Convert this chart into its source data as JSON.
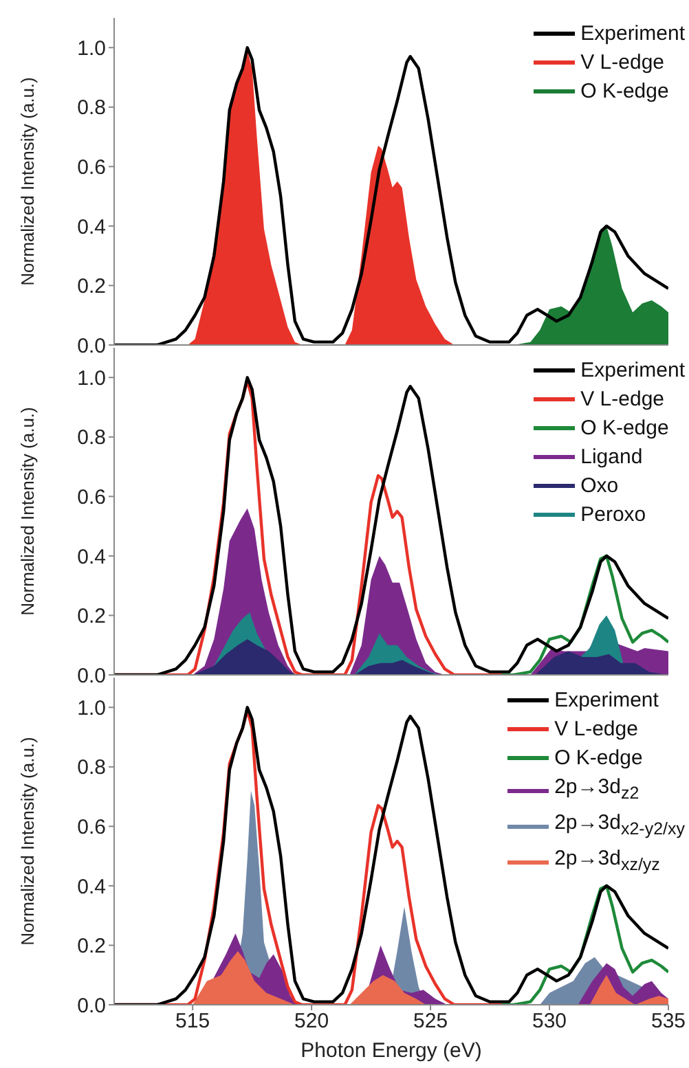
{
  "chart_data": [
    {
      "type": "line",
      "ylabel": "Normalized Intensity (a.u.)",
      "xlim": [
        511.7,
        535
      ],
      "xticks": [
        515,
        520,
        525,
        530,
        535
      ],
      "ylim": [
        0,
        1.1
      ],
      "yticks": [
        {
          "value": 0,
          "label": "0.0"
        },
        {
          "value": 0.2,
          "label": "0.2"
        },
        {
          "value": 0.4,
          "label": "0.4"
        },
        {
          "value": 0.6,
          "label": "0.6"
        },
        {
          "value": 0.8,
          "label": "0.8"
        },
        {
          "value": 1,
          "label": "1.0"
        }
      ],
      "tick_labels": "y",
      "legend": "top right",
      "grid": false,
      "series": [
        {
          "name": "Experiment",
          "color": "#000000",
          "type": "line",
          "x": [
            511.7,
            513.5,
            514.3,
            514.7,
            515.1,
            515.5,
            515.9,
            516.3,
            516.55,
            516.85,
            517.1,
            517.3,
            517.5,
            517.8,
            518.1,
            518.4,
            518.7,
            519.0,
            519.3,
            519.65,
            520.1,
            520.9,
            521.3,
            521.7,
            522.1,
            522.5,
            522.85,
            523.2,
            523.6,
            524.0,
            524.15,
            524.5,
            524.9,
            525.3,
            525.7,
            526.05,
            526.45,
            526.9,
            527.5,
            528.3,
            528.65,
            529.05,
            529.5,
            529.9,
            530.3,
            530.8,
            531.3,
            531.8,
            532.15,
            532.4,
            532.75,
            533.3,
            534.0,
            535.0
          ],
          "values": [
            0,
            0,
            0.02,
            0.05,
            0.1,
            0.16,
            0.3,
            0.55,
            0.79,
            0.88,
            0.93,
            1.0,
            0.96,
            0.79,
            0.73,
            0.65,
            0.5,
            0.27,
            0.08,
            0.02,
            0.01,
            0.01,
            0.04,
            0.12,
            0.24,
            0.42,
            0.59,
            0.7,
            0.82,
            0.95,
            0.97,
            0.93,
            0.76,
            0.56,
            0.36,
            0.21,
            0.1,
            0.03,
            0.01,
            0.01,
            0.04,
            0.1,
            0.12,
            0.1,
            0.08,
            0.1,
            0.16,
            0.28,
            0.38,
            0.4,
            0.38,
            0.3,
            0.24,
            0.19
          ]
        },
        {
          "name": "V L-edge",
          "color": "#e8332a",
          "type": "area",
          "x": [
            511.7,
            514.8,
            515.1,
            515.5,
            515.9,
            516.3,
            516.55,
            516.85,
            517.1,
            517.3,
            517.5,
            517.7,
            518.0,
            518.3,
            518.6,
            519.0,
            519.3,
            519.6,
            521.4,
            521.7,
            522.1,
            522.5,
            522.8,
            522.95,
            523.2,
            523.4,
            523.6,
            523.8,
            524.1,
            524.4,
            524.8,
            525.2,
            525.6,
            526.0,
            528.0
          ],
          "values": [
            0,
            0,
            0.02,
            0.15,
            0.33,
            0.58,
            0.81,
            0.88,
            0.93,
            0.99,
            0.93,
            0.7,
            0.39,
            0.27,
            0.18,
            0.06,
            0.01,
            0,
            0,
            0.05,
            0.3,
            0.58,
            0.67,
            0.66,
            0.59,
            0.53,
            0.55,
            0.53,
            0.36,
            0.22,
            0.13,
            0.07,
            0.02,
            0,
            0
          ]
        },
        {
          "name": "O K-edge",
          "color": "#1b7d36",
          "type": "area",
          "x": [
            528.0,
            528.5,
            529.2,
            529.6,
            530.0,
            530.5,
            530.9,
            531.3,
            531.8,
            532.15,
            532.4,
            532.65,
            533.05,
            533.5,
            533.9,
            534.3,
            534.7,
            535.0
          ],
          "values": [
            0,
            0,
            0.01,
            0.05,
            0.12,
            0.13,
            0.11,
            0.16,
            0.3,
            0.39,
            0.4,
            0.33,
            0.19,
            0.11,
            0.14,
            0.15,
            0.13,
            0.11
          ]
        }
      ]
    },
    {
      "type": "line",
      "ylabel": "Normalized Intensity (a.u.)",
      "xlim": [
        511.7,
        535
      ],
      "xticks": [
        515,
        520,
        525,
        530,
        535
      ],
      "ylim": [
        0,
        1.1
      ],
      "yticks": [
        {
          "value": 0,
          "label": "0.0"
        },
        {
          "value": 0.2,
          "label": "0.2"
        },
        {
          "value": 0.4,
          "label": "0.4"
        },
        {
          "value": 0.6,
          "label": "0.6"
        },
        {
          "value": 0.8,
          "label": "0.8"
        },
        {
          "value": 1,
          "label": "1.0"
        }
      ],
      "tick_labels": "y",
      "legend": "top right",
      "grid": false,
      "series": [
        {
          "name": "Experiment",
          "color": "#000000",
          "type": "line",
          "x": [
            511.7,
            513.5,
            514.3,
            514.7,
            515.1,
            515.5,
            515.9,
            516.3,
            516.55,
            516.85,
            517.1,
            517.3,
            517.5,
            517.8,
            518.1,
            518.4,
            518.7,
            519.0,
            519.3,
            519.65,
            520.1,
            520.9,
            521.3,
            521.7,
            522.1,
            522.5,
            522.85,
            523.2,
            523.6,
            524.0,
            524.15,
            524.5,
            524.9,
            525.3,
            525.7,
            526.05,
            526.45,
            526.9,
            527.5,
            528.3,
            528.65,
            529.05,
            529.5,
            529.9,
            530.3,
            530.8,
            531.3,
            531.8,
            532.15,
            532.4,
            532.75,
            533.3,
            534.0,
            535.0
          ],
          "values": [
            0,
            0,
            0.02,
            0.05,
            0.1,
            0.16,
            0.3,
            0.55,
            0.79,
            0.88,
            0.93,
            1.0,
            0.96,
            0.79,
            0.73,
            0.65,
            0.5,
            0.27,
            0.08,
            0.02,
            0.01,
            0.01,
            0.04,
            0.12,
            0.24,
            0.42,
            0.59,
            0.7,
            0.82,
            0.95,
            0.97,
            0.93,
            0.76,
            0.56,
            0.36,
            0.21,
            0.1,
            0.03,
            0.01,
            0.01,
            0.04,
            0.1,
            0.12,
            0.1,
            0.08,
            0.1,
            0.16,
            0.28,
            0.38,
            0.4,
            0.38,
            0.3,
            0.24,
            0.19
          ]
        },
        {
          "name": "V L-edge",
          "color": "#e8332a",
          "type": "line",
          "x": [
            511.7,
            514.8,
            515.1,
            515.5,
            515.9,
            516.3,
            516.55,
            516.85,
            517.1,
            517.3,
            517.5,
            517.7,
            518.0,
            518.3,
            518.6,
            519.0,
            519.3,
            519.6,
            521.4,
            521.7,
            522.1,
            522.5,
            522.8,
            522.95,
            523.2,
            523.4,
            523.6,
            523.8,
            524.1,
            524.4,
            524.8,
            525.2,
            525.6,
            526.0,
            528.0
          ],
          "values": [
            0,
            0,
            0.02,
            0.15,
            0.33,
            0.58,
            0.81,
            0.88,
            0.93,
            0.99,
            0.93,
            0.7,
            0.39,
            0.27,
            0.18,
            0.06,
            0.01,
            0,
            0,
            0.05,
            0.3,
            0.58,
            0.67,
            0.66,
            0.59,
            0.53,
            0.55,
            0.53,
            0.36,
            0.22,
            0.13,
            0.07,
            0.02,
            0,
            0
          ]
        },
        {
          "name": "O K-edge",
          "color": "#1e8a3a",
          "type": "line",
          "x": [
            528.0,
            528.5,
            529.2,
            529.6,
            530.0,
            530.5,
            530.9,
            531.3,
            531.8,
            532.15,
            532.4,
            532.65,
            533.05,
            533.5,
            533.9,
            534.3,
            534.7,
            535.0
          ],
          "values": [
            0,
            0,
            0.01,
            0.05,
            0.12,
            0.13,
            0.11,
            0.16,
            0.3,
            0.39,
            0.4,
            0.33,
            0.19,
            0.11,
            0.14,
            0.15,
            0.13,
            0.11
          ]
        },
        {
          "name": "Ligand",
          "color": "#7b2a8c",
          "type": "area",
          "x": [
            515.0,
            515.5,
            515.9,
            516.3,
            516.55,
            517.0,
            517.3,
            517.6,
            517.9,
            518.2,
            518.6,
            519.0,
            519.3,
            521.6,
            522.1,
            522.5,
            522.85,
            523.1,
            523.4,
            523.7,
            524.0,
            524.4,
            524.8,
            525.2,
            525.6,
            529.2,
            529.6,
            530.1,
            530.6,
            531.1,
            531.6,
            532.0,
            532.4,
            532.8,
            533.3,
            533.7,
            534.0,
            535.0
          ],
          "values": [
            0,
            0.03,
            0.12,
            0.29,
            0.45,
            0.52,
            0.56,
            0.49,
            0.32,
            0.21,
            0.1,
            0.03,
            0,
            0,
            0.1,
            0.32,
            0.4,
            0.37,
            0.31,
            0.31,
            0.23,
            0.12,
            0.04,
            0.01,
            0,
            0,
            0.04,
            0.09,
            0.08,
            null,
            0.08,
            0.13,
            null,
            null,
            null,
            0.08,
            0.09,
            0.08
          ]
        },
        {
          "name": "Oxo",
          "color": "#2b2a6e",
          "type": "area",
          "x": [
            515.0,
            515.9,
            516.4,
            516.9,
            517.3,
            517.7,
            518.2,
            518.6,
            519.1,
            519.4,
            521.8,
            522.4,
            522.9,
            523.4,
            523.8,
            524.3,
            524.9,
            525.3,
            529.4,
            530.2,
            530.8,
            531.4,
            532.0,
            532.5,
            533.0,
            533.6,
            534.2,
            535.0
          ],
          "values": [
            0,
            0.03,
            0.07,
            0.1,
            0.12,
            0.1,
            0.08,
            0.05,
            0.01,
            0,
            0,
            0.03,
            0.04,
            0.04,
            0.05,
            0.03,
            0.01,
            0,
            0,
            0.06,
            0.08,
            0.06,
            0.06,
            0.07,
            0.04,
            0.04,
            0.01,
            0
          ]
        },
        {
          "name": "Peroxo",
          "color": "#1e8585",
          "type": "area",
          "x": [
            515.2,
            515.9,
            516.3,
            516.7,
            517.1,
            517.4,
            517.7,
            518.1,
            518.5,
            519.0,
            519.3,
            521.8,
            522.4,
            522.85,
            523.2,
            523.6,
            524.0,
            524.5,
            525.0,
            525.4,
            530.5,
            531.1,
            531.7,
            532.1,
            532.4,
            532.75,
            533.1,
            533.5,
            534.0,
            535.0
          ],
          "values": [
            0,
            0.03,
            0.09,
            0.15,
            0.19,
            0.21,
            0.14,
            0.08,
            null,
            0.01,
            0,
            0,
            0.06,
            0.14,
            0.1,
            0.1,
            0.06,
            0.03,
            0.01,
            0,
            0,
            null,
            0.09,
            0.17,
            0.2,
            0.15,
            0.04,
            null,
            0,
            0
          ]
        }
      ]
    },
    {
      "type": "line",
      "ylabel": "Normalized Intensity (a.u.)",
      "xlabel": "Photon Energy (eV)",
      "xlim": [
        511.7,
        535
      ],
      "xticks": [
        515,
        520,
        525,
        530,
        535
      ],
      "ylim": [
        0,
        1.1
      ],
      "yticks": [
        {
          "value": 0,
          "label": "0.0"
        },
        {
          "value": 0.2,
          "label": "0.2"
        },
        {
          "value": 0.4,
          "label": "0.4"
        },
        {
          "value": 0.6,
          "label": "0.6"
        },
        {
          "value": 0.8,
          "label": "0.8"
        },
        {
          "value": 1,
          "label": "1.0"
        }
      ],
      "legend": "top right",
      "grid": false,
      "series": [
        {
          "name": "Experiment",
          "color": "#000000",
          "type": "line",
          "x": [
            511.7,
            513.5,
            514.3,
            514.7,
            515.1,
            515.5,
            515.9,
            516.3,
            516.55,
            516.85,
            517.1,
            517.3,
            517.5,
            517.8,
            518.1,
            518.4,
            518.7,
            519.0,
            519.3,
            519.65,
            520.1,
            520.9,
            521.3,
            521.7,
            522.1,
            522.5,
            522.85,
            523.2,
            523.6,
            524.0,
            524.15,
            524.5,
            524.9,
            525.3,
            525.7,
            526.05,
            526.45,
            526.9,
            527.5,
            528.3,
            528.65,
            529.05,
            529.5,
            529.9,
            530.3,
            530.8,
            531.3,
            531.8,
            532.15,
            532.4,
            532.75,
            533.3,
            534.0,
            535.0
          ],
          "values": [
            0,
            0,
            0.02,
            0.05,
            0.1,
            0.16,
            0.3,
            0.55,
            0.79,
            0.88,
            0.93,
            1.0,
            0.96,
            0.79,
            0.73,
            0.65,
            0.5,
            0.27,
            0.08,
            0.02,
            0.01,
            0.01,
            0.04,
            0.12,
            0.24,
            0.42,
            0.59,
            0.7,
            0.82,
            0.95,
            0.97,
            0.93,
            0.76,
            0.56,
            0.36,
            0.21,
            0.1,
            0.03,
            0.01,
            0.01,
            0.04,
            0.1,
            0.12,
            0.1,
            0.08,
            0.1,
            0.16,
            0.28,
            0.38,
            0.4,
            0.38,
            0.3,
            0.24,
            0.19
          ]
        },
        {
          "name": "V L-edge",
          "color": "#e8332a",
          "type": "line",
          "x": [
            511.7,
            514.8,
            515.1,
            515.5,
            515.9,
            516.3,
            516.55,
            516.85,
            517.1,
            517.3,
            517.5,
            517.7,
            518.0,
            518.3,
            518.6,
            519.0,
            519.3,
            519.6,
            521.4,
            521.7,
            522.1,
            522.5,
            522.8,
            522.95,
            523.2,
            523.4,
            523.6,
            523.8,
            524.1,
            524.4,
            524.8,
            525.2,
            525.6,
            526.0,
            528.0
          ],
          "values": [
            0,
            0,
            0.02,
            0.15,
            0.33,
            0.58,
            0.81,
            0.88,
            0.93,
            0.99,
            0.93,
            0.7,
            0.39,
            0.27,
            0.18,
            0.06,
            0.01,
            0,
            0,
            0.05,
            0.3,
            0.58,
            0.67,
            0.66,
            0.59,
            0.53,
            0.55,
            0.53,
            0.36,
            0.22,
            0.13,
            0.07,
            0.02,
            0,
            0
          ]
        },
        {
          "name": "O K-edge",
          "color": "#1e8a3a",
          "type": "line",
          "x": [
            528.0,
            528.5,
            529.2,
            529.6,
            530.0,
            530.5,
            530.9,
            531.3,
            531.8,
            532.15,
            532.4,
            532.65,
            533.05,
            533.5,
            533.9,
            534.3,
            534.7,
            535.0
          ],
          "values": [
            0,
            0,
            0.01,
            0.05,
            0.12,
            0.13,
            0.11,
            0.16,
            0.3,
            0.39,
            0.4,
            0.33,
            0.19,
            0.11,
            0.14,
            0.15,
            0.13,
            0.11
          ]
        },
        {
          "name": "2p→3d$_{z2}$",
          "color": "#7b2a8c",
          "type": "area",
          "x": [
            515.3,
            515.9,
            516.4,
            516.8,
            517.1,
            517.4,
            517.8,
            518.1,
            518.4,
            518.8,
            519.1,
            519.4,
            521.8,
            522.4,
            522.9,
            523.3,
            523.7,
            524.2,
            524.7,
            525.2,
            525.7,
            531.2,
            531.8,
            532.4,
            532.75,
            533.1,
            533.5,
            534.0,
            534.3,
            534.7,
            535.0
          ],
          "values": [
            0,
            null,
            0.17,
            0.24,
            0.18,
            0.11,
            0.09,
            0.14,
            0.17,
            0.11,
            0.03,
            0,
            0,
            0.06,
            0.2,
            0.12,
            0.05,
            0.04,
            0.05,
            0.02,
            0,
            0,
            0.08,
            0.14,
            0.12,
            0.06,
            0.03,
            0.07,
            0.08,
            0.04,
            0.02
          ]
        },
        {
          "name": "2p→3d$_{x2-y2/xy}$",
          "color": "#7088a8",
          "type": "area",
          "x": [
            516.6,
            516.9,
            517.1,
            517.3,
            517.45,
            517.6,
            517.8,
            518.0,
            518.2,
            518.5,
            518.8,
            523.2,
            523.45,
            523.6,
            523.9,
            524.2,
            524.5,
            524.8,
            529.6,
            530.0,
            530.5,
            531.0,
            531.5,
            531.9,
            532.3,
            532.8,
            533.3,
            533.8,
            534.5,
            535.0
          ],
          "values": [
            0,
            null,
            0.24,
            0.49,
            0.72,
            0.67,
            0.46,
            0.21,
            null,
            null,
            0,
            0,
            null,
            0.18,
            0.33,
            0.18,
            0.06,
            0,
            0,
            0.04,
            0.06,
            0.08,
            0.14,
            0.16,
            0.12,
            null,
            null,
            null,
            null,
            0.02
          ]
        },
        {
          "name": "2p→3d$_{xz/yz}$",
          "color": "#ea6a50",
          "type": "area",
          "x": [
            515.0,
            515.6,
            516.2,
            516.6,
            516.9,
            517.2,
            517.6,
            518.1,
            518.7,
            519.3,
            521.6,
            522.1,
            522.6,
            523.0,
            523.5,
            523.9,
            524.4,
            524.8,
            531.7,
            532.1,
            532.4,
            532.8,
            533.2,
            533.6,
            534.2,
            534.6,
            535.0
          ],
          "values": [
            0,
            0.08,
            0.1,
            0.15,
            0.18,
            0.15,
            0.08,
            0.04,
            0.02,
            0,
            0,
            0.04,
            0.08,
            0.1,
            0.08,
            0.04,
            0.02,
            0,
            0,
            0.06,
            0.1,
            0.04,
            0.02,
            0,
            0.02,
            0.03,
            0.02
          ]
        }
      ]
    }
  ]
}
